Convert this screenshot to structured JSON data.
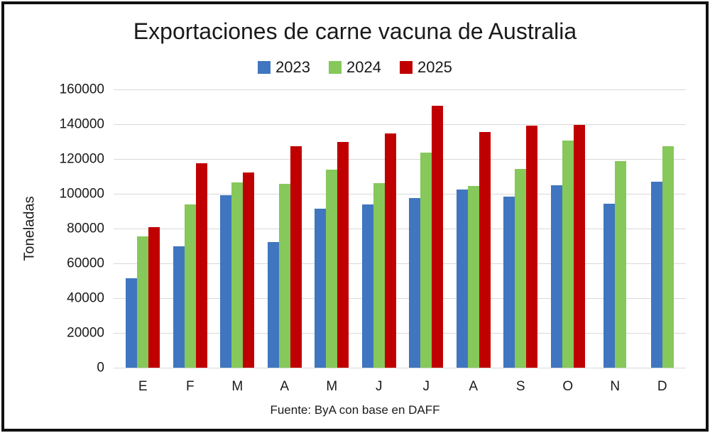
{
  "chart_data": {
    "type": "bar",
    "title": "Exportaciones de carne vacuna de Australia",
    "ylabel": "Toneladas",
    "xlabel": "",
    "source_note": "Fuente: ByA con base en DAFF",
    "categories": [
      "E",
      "F",
      "M",
      "A",
      "M",
      "J",
      "J",
      "A",
      "S",
      "O",
      "N",
      "D"
    ],
    "series": [
      {
        "name": "2023",
        "color": "#4076BF",
        "values": [
          51500,
          70000,
          99000,
          72300,
          91500,
          93800,
          97400,
          102300,
          98500,
          105000,
          94200,
          107000
        ]
      },
      {
        "name": "2024",
        "color": "#86C85A",
        "values": [
          75500,
          93800,
          106700,
          105600,
          113900,
          106200,
          123600,
          104500,
          114300,
          130600,
          118900,
          127400
        ]
      },
      {
        "name": "2025",
        "color": "#C00000",
        "values": [
          81000,
          117700,
          112300,
          127200,
          129700,
          134800,
          150500,
          135500,
          139000,
          139600,
          null,
          null
        ]
      }
    ],
    "ylim": [
      0,
      160000
    ],
    "ytick_step": 20000,
    "grid": true,
    "legend_position": "top",
    "gridline_color": "#D9D9D9",
    "text_color": "#1A1A1A",
    "border_color": "#111111"
  }
}
